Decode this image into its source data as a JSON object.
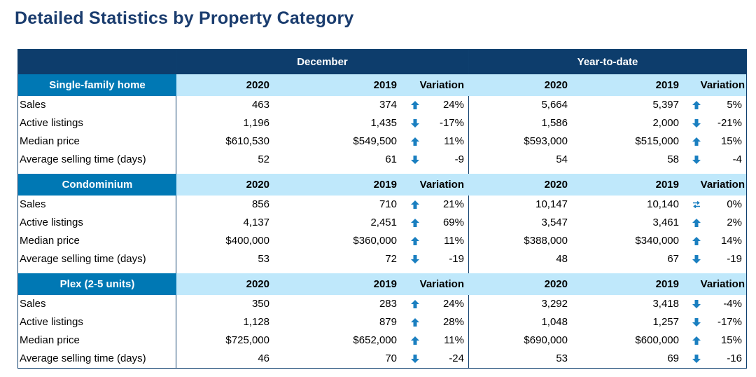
{
  "title": "Detailed Statistics by Property Category",
  "periods": [
    "December",
    "Year-to-date"
  ],
  "colors": {
    "header": "#0d3d6c",
    "category": "#0078b4",
    "subheader": "#bfe8fb",
    "arrow": "#1a7fc0"
  },
  "sections": [
    {
      "category": "Single-family home",
      "headers": {
        "y1": "2020",
        "y2": "2019",
        "var": "Variation"
      },
      "rows": [
        {
          "label": "Sales",
          "dec": [
            "463",
            "374",
            "up",
            "24%"
          ],
          "ytd": [
            "5,664",
            "5,397",
            "up",
            "5%"
          ]
        },
        {
          "label": "Active listings",
          "dec": [
            "1,196",
            "1,435",
            "down",
            "-17%"
          ],
          "ytd": [
            "1,586",
            "2,000",
            "down",
            "-21%"
          ]
        },
        {
          "label": "Median price",
          "dec": [
            "$610,530",
            "$549,500",
            "up",
            "11%"
          ],
          "ytd": [
            "$593,000",
            "$515,000",
            "up",
            "15%"
          ]
        },
        {
          "label": "Average selling time (days)",
          "dec": [
            "52",
            "61",
            "down",
            "-9"
          ],
          "ytd": [
            "54",
            "58",
            "down",
            "-4"
          ]
        }
      ]
    },
    {
      "category": "Condominium",
      "headers": {
        "y1": "2020",
        "y2": "2019",
        "var": "Variation"
      },
      "rows": [
        {
          "label": "Sales",
          "dec": [
            "856",
            "710",
            "up",
            "21%"
          ],
          "ytd": [
            "10,147",
            "10,140",
            "flat",
            "0%"
          ]
        },
        {
          "label": "Active listings",
          "dec": [
            "4,137",
            "2,451",
            "up",
            "69%"
          ],
          "ytd": [
            "3,547",
            "3,461",
            "up",
            "2%"
          ]
        },
        {
          "label": "Median price",
          "dec": [
            "$400,000",
            "$360,000",
            "up",
            "11%"
          ],
          "ytd": [
            "$388,000",
            "$340,000",
            "up",
            "14%"
          ]
        },
        {
          "label": "Average selling time (days)",
          "dec": [
            "53",
            "72",
            "down",
            "-19"
          ],
          "ytd": [
            "48",
            "67",
            "down",
            "-19"
          ]
        }
      ]
    },
    {
      "category": "Plex (2-5 units)",
      "headers": {
        "y1": "2020",
        "y2": "2019",
        "var": "Variation"
      },
      "rows": [
        {
          "label": "Sales",
          "dec": [
            "350",
            "283",
            "up",
            "24%"
          ],
          "ytd": [
            "3,292",
            "3,418",
            "down",
            "-4%"
          ]
        },
        {
          "label": "Active listings",
          "dec": [
            "1,128",
            "879",
            "up",
            "28%"
          ],
          "ytd": [
            "1,048",
            "1,257",
            "down",
            "-17%"
          ]
        },
        {
          "label": "Median price",
          "dec": [
            "$725,000",
            "$652,000",
            "up",
            "11%"
          ],
          "ytd": [
            "$690,000",
            "$600,000",
            "up",
            "15%"
          ]
        },
        {
          "label": "Average selling time (days)",
          "dec": [
            "46",
            "70",
            "down",
            "-24"
          ],
          "ytd": [
            "53",
            "69",
            "down",
            "-16"
          ]
        }
      ]
    }
  ]
}
